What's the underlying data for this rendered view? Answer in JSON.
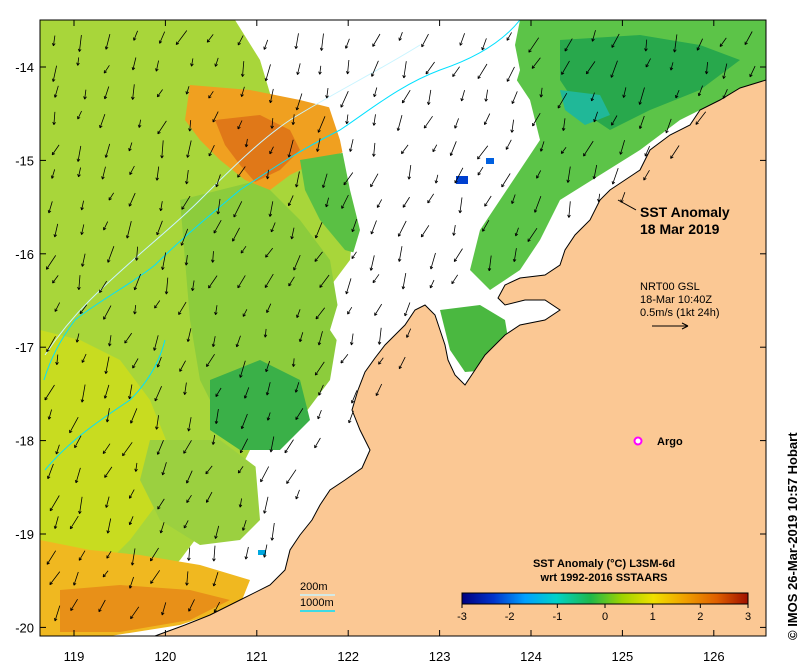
{
  "map": {
    "title_line1": "SST Anomaly",
    "title_line2": "18 Mar 2019",
    "current_source": "NRT00 GSL",
    "current_time": "18-Mar 10:40Z",
    "current_scale": "0.5m/s (1kt 24h)",
    "argo_label": "Argo",
    "contour_200": "200m",
    "contour_1000": "1000m",
    "credit": "© IMOS 26-Mar-2019 10:57 Hobart",
    "lon_ticks": [
      "119",
      "120",
      "121",
      "122",
      "123",
      "124",
      "125",
      "126"
    ],
    "lat_ticks": [
      "-14",
      "-15",
      "-16",
      "-17",
      "-18",
      "-19",
      "-20"
    ],
    "colorbar": {
      "title_line1": "SST Anomaly (°C) L3SM-6d",
      "title_line2": "wrt 1992-2016 SSTAARS",
      "ticks": [
        "-3",
        "-2",
        "-1",
        "0",
        "1",
        "2",
        "3"
      ],
      "stops": [
        "#00007f",
        "#0033cc",
        "#00a0ff",
        "#00d2c8",
        "#1fb84a",
        "#9fd400",
        "#f0e000",
        "#f0a000",
        "#e06000",
        "#a01000"
      ]
    },
    "colors": {
      "land": "#fbc894",
      "ocean_missing": "#ffffff",
      "contour": "#00e0ff",
      "argo_marker": "#ff00ff"
    }
  }
}
